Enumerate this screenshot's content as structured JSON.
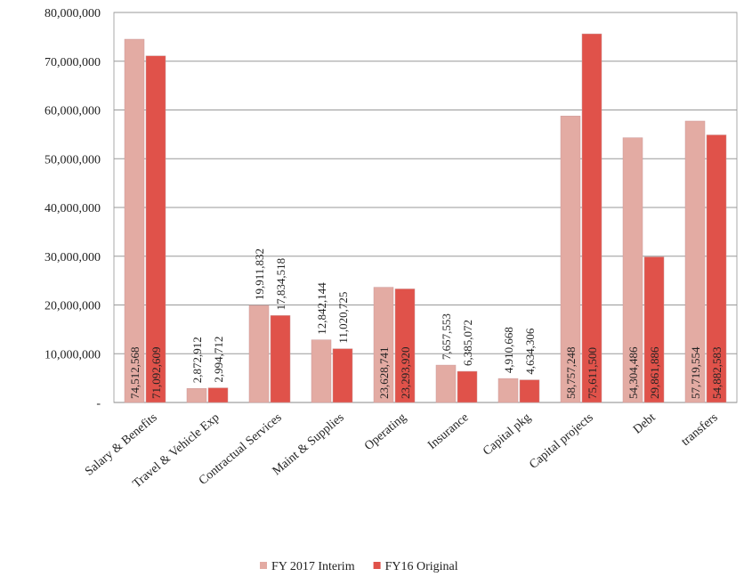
{
  "chart_data": {
    "type": "bar",
    "categories": [
      "Salary & Benefits",
      "Travel & Vehicle Exp",
      "Contractual Services",
      "Maint & Supplies",
      "Operating",
      "Insurance",
      "Capital pkg",
      "Capital projects",
      "Debt",
      "transfers"
    ],
    "series": [
      {
        "name": "FY 2017 Interim",
        "color": "#e3aba3",
        "values": [
          74512568,
          2872912,
          19911832,
          12842144,
          23628741,
          7657553,
          4910668,
          58757248,
          54304486,
          57719554
        ],
        "value_labels": [
          "74,512,568",
          "2,872,912",
          "19,911,832",
          "12,842,144",
          "23,628,741",
          "7,657,553",
          "4,910,668",
          "58,757,248",
          "54,304,486",
          "57,719,554"
        ]
      },
      {
        "name": "FY16 Original",
        "color": "#e0524a",
        "values": [
          71092609,
          2994712,
          17834518,
          11020725,
          23293920,
          6385072,
          4634306,
          75611500,
          29861886,
          54882583
        ],
        "value_labels": [
          "71,092,609",
          "2,994,712",
          "17,834,518",
          "11,020,725",
          "23,293,920",
          "6,385,072",
          "4,634,306",
          "75,611,500",
          "29,861,886",
          "54,882,583"
        ]
      }
    ],
    "ylim": [
      0,
      80000000
    ],
    "yticks": [
      {
        "value": 0,
        "label": "-"
      },
      {
        "value": 10000000,
        "label": "10,000,000"
      },
      {
        "value": 20000000,
        "label": "20,000,000"
      },
      {
        "value": 30000000,
        "label": "30,000,000"
      },
      {
        "value": 40000000,
        "label": "40,000,000"
      },
      {
        "value": 50000000,
        "label": "50,000,000"
      },
      {
        "value": 60000000,
        "label": "60,000,000"
      },
      {
        "value": 70000000,
        "label": "70,000,000"
      },
      {
        "value": 80000000,
        "label": "80,000,000"
      }
    ],
    "grid": true,
    "legend": "bottom"
  }
}
